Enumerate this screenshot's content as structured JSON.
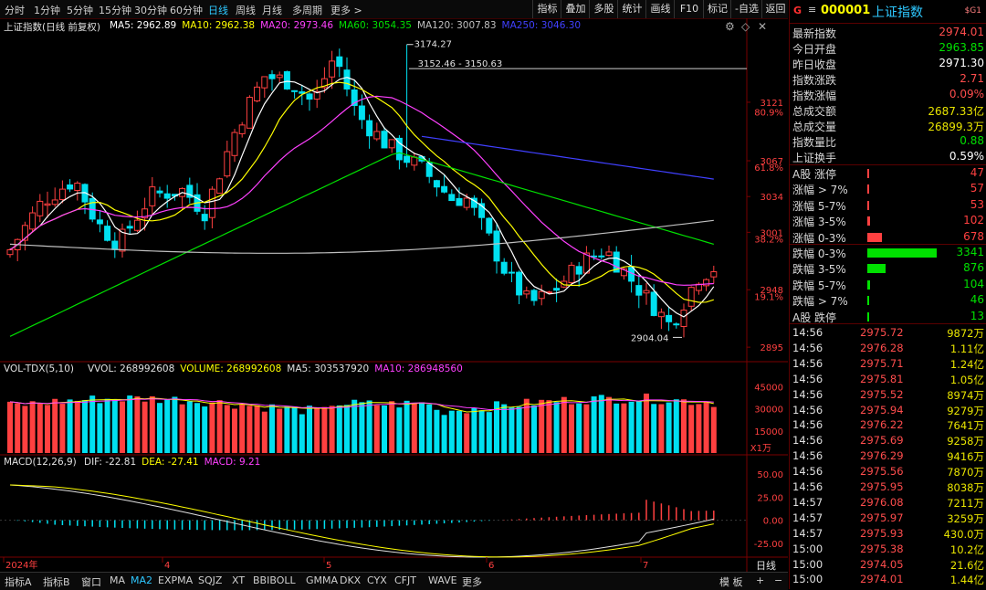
{
  "toolbar": {
    "periods": [
      "分时",
      "1分钟",
      "5分钟",
      "15分钟",
      "30分钟",
      "60分钟",
      "日线",
      "周线",
      "月线",
      "多周期",
      "更多 >"
    ],
    "active_period": "日线",
    "right_buttons": [
      "指标",
      "叠加",
      "多股",
      "统计",
      "画线",
      "F10",
      "标记",
      "-自选",
      "返回"
    ]
  },
  "main_chart": {
    "title": "上证指数(日线 前复权)",
    "ma_labels": [
      {
        "text": "MA5: 2962.89",
        "color": "#ffffff"
      },
      {
        "text": "MA10: 2962.38",
        "color": "#ffff00"
      },
      {
        "text": "MA20: 2973.46",
        "color": "#ff40ff"
      },
      {
        "text": "MA60: 3054.35",
        "color": "#00e000"
      },
      {
        "text": "MA120: 3007.83",
        "color": "#c0c0c0"
      },
      {
        "text": "MA250: 3046.30",
        "color": "#4040ff"
      }
    ],
    "price_axis": [
      "3121",
      "3067",
      "3034",
      "3001",
      "2948",
      "2895"
    ],
    "fib_labels": [
      "80.9%",
      "61.8%",
      "38.2%",
      "19.1%"
    ],
    "annotations": {
      "high": "3174.27",
      "range": "3152.46 - 3150.63",
      "low": "2904.04"
    }
  },
  "volume_chart": {
    "title": "VOL-TDX(5,10)",
    "labels": [
      {
        "text": "VVOL: 268992608",
        "color": "#e0e0e0"
      },
      {
        "text": "VOLUME: 268992608",
        "color": "#ffff00"
      },
      {
        "text": "MA5: 303537920",
        "color": "#e0e0e0"
      },
      {
        "text": "MA10: 286948560",
        "color": "#ff40ff"
      }
    ],
    "axis": [
      "45000",
      "30000",
      "15000"
    ],
    "unit": "X1万"
  },
  "macd_chart": {
    "title": "MACD(12,26,9)",
    "labels": [
      {
        "text": "DIF: -22.81",
        "color": "#e0e0e0"
      },
      {
        "text": "DEA: -27.41",
        "color": "#ffff00"
      },
      {
        "text": "MACD: 9.21",
        "color": "#ff40ff"
      }
    ],
    "axis": [
      "50.00",
      "25.00",
      "0.00",
      "-25.00"
    ]
  },
  "date_axis": [
    "2024年",
    "4",
    "5",
    "6",
    "7"
  ],
  "bottom_tabs": [
    "指标A",
    "指标B",
    "窗口",
    "MA",
    "MA2",
    "EXPMA",
    "SQJZ",
    "XT",
    "BBIBOLL",
    "GMMA",
    "DKX",
    "CYX",
    "CFJT",
    "WAVE",
    "更多"
  ],
  "bottom_active": "MA2",
  "bottom_right": {
    "mode": "模 板",
    "period": "日线",
    "plus": "+",
    "minus": "−"
  },
  "quote_panel": {
    "prefix": "G",
    "menu_icon": "≡",
    "code": "000001",
    "name": "上证指数",
    "badge": "$G1",
    "quotes": [
      {
        "k": "最新指数",
        "v": "2974.01",
        "c": "#ff4d4d"
      },
      {
        "k": "今日开盘",
        "v": "2963.85",
        "c": "#00e000"
      },
      {
        "k": "昨日收盘",
        "v": "2971.30",
        "c": "#ffffff"
      },
      {
        "k": "指数涨跌",
        "v": "2.71",
        "c": "#ff4d4d"
      },
      {
        "k": "指数涨幅",
        "v": "0.09%",
        "c": "#ff4d4d"
      },
      {
        "k": "总成交额",
        "v": "2687.33亿",
        "c": "#e8e400"
      },
      {
        "k": "总成交量",
        "v": "26899.3万",
        "c": "#e8e400"
      },
      {
        "k": "指数量比",
        "v": "0.88",
        "c": "#00e000"
      },
      {
        "k": "上证换手",
        "v": "0.59%",
        "c": "#ffffff"
      }
    ],
    "breadth_up": [
      {
        "k": "A股 涨停",
        "v": "47",
        "w": 2
      },
      {
        "k": "涨幅 > 7%",
        "v": "57",
        "w": 2
      },
      {
        "k": "涨幅 5-7%",
        "v": "53",
        "w": 2
      },
      {
        "k": "涨幅 3-5%",
        "v": "102",
        "w": 3
      },
      {
        "k": "涨幅 0-3%",
        "v": "678",
        "w": 16
      }
    ],
    "breadth_down": [
      {
        "k": "跌幅 0-3%",
        "v": "3341",
        "w": 76
      },
      {
        "k": "跌幅 3-5%",
        "v": "876",
        "w": 20
      },
      {
        "k": "跌幅 5-7%",
        "v": "104",
        "w": 3
      },
      {
        "k": "跌幅 > 7%",
        "v": "46",
        "w": 2
      },
      {
        "k": "A股 跌停",
        "v": "13",
        "w": 2
      }
    ],
    "ticks": [
      {
        "t": "14:56",
        "p": "2975.72",
        "q": "9872万"
      },
      {
        "t": "14:56",
        "p": "2976.28",
        "q": "1.11亿"
      },
      {
        "t": "14:56",
        "p": "2975.71",
        "q": "1.24亿"
      },
      {
        "t": "14:56",
        "p": "2975.81",
        "q": "1.05亿"
      },
      {
        "t": "14:56",
        "p": "2975.52",
        "q": "8974万"
      },
      {
        "t": "14:56",
        "p": "2975.94",
        "q": "9279万"
      },
      {
        "t": "14:56",
        "p": "2976.22",
        "q": "7641万"
      },
      {
        "t": "14:56",
        "p": "2975.69",
        "q": "9258万"
      },
      {
        "t": "14:56",
        "p": "2976.29",
        "q": "9416万"
      },
      {
        "t": "14:56",
        "p": "2975.56",
        "q": "7870万"
      },
      {
        "t": "14:56",
        "p": "2975.95",
        "q": "8038万"
      },
      {
        "t": "14:57",
        "p": "2976.08",
        "q": "7211万"
      },
      {
        "t": "14:57",
        "p": "2975.97",
        "q": "3259万"
      },
      {
        "t": "14:57",
        "p": "2975.93",
        "q": "430.0万"
      },
      {
        "t": "15:00",
        "p": "2975.38",
        "q": "10.2亿"
      },
      {
        "t": "15:00",
        "p": "2974.05",
        "q": "21.6亿"
      },
      {
        "t": "15:00",
        "p": "2974.01",
        "q": "1.44亿"
      }
    ]
  },
  "colors": {
    "up": "#ff4040",
    "down": "#00e0f0",
    "ma5": "#ffffff",
    "ma10": "#ffff00",
    "ma20": "#ff40ff",
    "ma60": "#00e000",
    "ma120": "#c0c0c0",
    "ma250": "#4040ff"
  }
}
